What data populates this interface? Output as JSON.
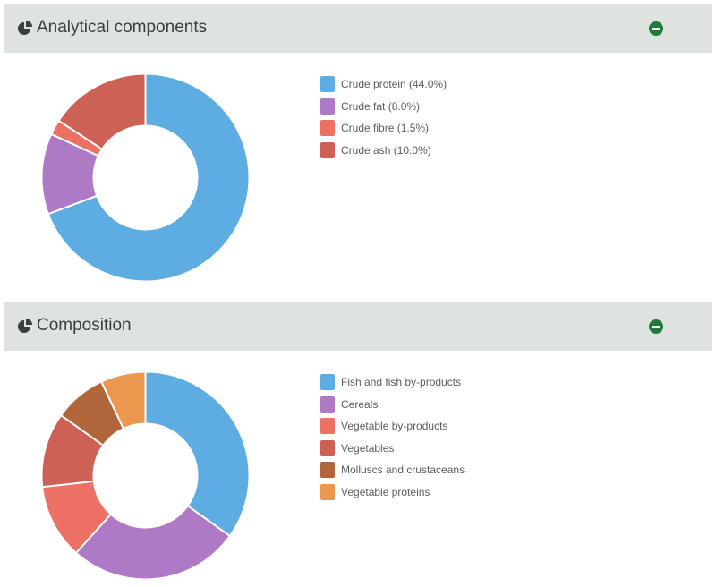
{
  "sections": [
    {
      "title": "Analytical components",
      "icon": "pie-chart-icon",
      "action_icon": "minus-circle-icon"
    },
    {
      "title": "Composition",
      "icon": "pie-chart-icon",
      "action_icon": "minus-circle-icon"
    }
  ],
  "chart_data": [
    {
      "type": "pie",
      "title": "Analytical components",
      "legend_position": "right",
      "categories": [
        "Crude protein (44.0%)",
        "Crude fat (8.0%)",
        "Crude fibre (1.5%)",
        "Crude ash (10.0%)"
      ],
      "values": [
        44.0,
        8.0,
        1.5,
        10.0
      ],
      "colors": [
        "#5dade2",
        "#af7ac5",
        "#ec7063",
        "#cd6155"
      ]
    },
    {
      "type": "pie",
      "title": "Composition",
      "legend_position": "right",
      "categories": [
        "Fish and fish by-products",
        "Cereals",
        "Vegetable by-products",
        "Vegetables",
        "Molluscs and crustaceans",
        "Vegetable proteins"
      ],
      "values": [
        30,
        23,
        10,
        10,
        7,
        6
      ],
      "colors": [
        "#5dade2",
        "#af7ac5",
        "#ec7063",
        "#cd6155",
        "#b0653a",
        "#eb984e"
      ]
    }
  ]
}
